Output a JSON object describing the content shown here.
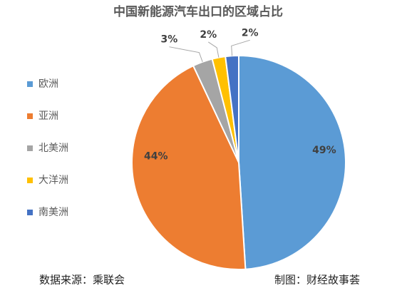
{
  "chart_data": {
    "type": "pie",
    "title": "中国新能源汽车出口的区域占比",
    "categories": [
      "欧洲",
      "亚洲",
      "北美洲",
      "大洋洲",
      "南美洲"
    ],
    "values": [
      49,
      44,
      3,
      2,
      2
    ],
    "value_labels": [
      "49%",
      "44%",
      "3%",
      "2%",
      "2%"
    ],
    "colors": [
      "#5b9bd5",
      "#ed7d31",
      "#a5a5a5",
      "#ffc000",
      "#4472c4"
    ],
    "legend": "left",
    "source_note": "数据来源：乘联会",
    "credit": "制图：财经故事荟"
  }
}
